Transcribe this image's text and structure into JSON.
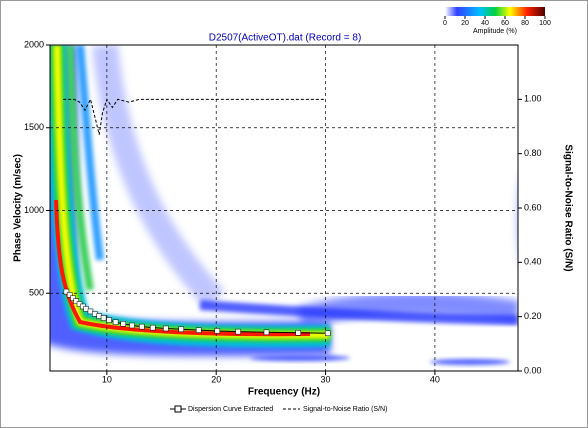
{
  "chart_data": {
    "type": "dispersion",
    "title": "D2507(ActiveOT).dat (Record = 8)",
    "x_label": "Frequency (Hz)",
    "y_label": "Phase Velocity (m/sec)",
    "y2_label": "Signal-to-Noise Ratio (S/N)",
    "xlim": [
      4.8,
      47.6
    ],
    "xticks": [
      10,
      20,
      30,
      40
    ],
    "ylim": [
      30,
      2000
    ],
    "yticks": [
      500,
      1000,
      1500,
      2000
    ],
    "y2lim": [
      0,
      1.2
    ],
    "y2ticks": [
      {
        "value": 0,
        "label": "0.00"
      },
      {
        "value": 0.2,
        "label": "0.20"
      },
      {
        "value": 0.4,
        "label": "0.40"
      },
      {
        "value": 0.6,
        "label": "0.60"
      },
      {
        "value": 0.8,
        "label": "0.80"
      },
      {
        "value": 1,
        "label": "1.00"
      }
    ],
    "grid": true,
    "colorbar": {
      "ticks": [
        0,
        20,
        40,
        60,
        80,
        100
      ],
      "label": "Amplitude (%)"
    },
    "series": [
      {
        "name": "Dispersion Curve Extracted",
        "color": "#ffffff",
        "x": [
          6.3,
          6.6,
          6.9,
          7.2,
          7.5,
          7.8,
          8.1,
          8.5,
          8.9,
          9.3,
          9.7,
          10.2,
          10.8,
          11.5,
          12.3,
          13.2,
          14.2,
          15.4,
          16.8,
          18.4,
          20.1,
          22.0,
          24.6,
          27.5,
          30.2
        ],
        "values": [
          510,
          490,
          470,
          452,
          435,
          420,
          405,
          390,
          375,
          362,
          350,
          338,
          325,
          315,
          305,
          298,
          292,
          287,
          282,
          277,
          272,
          268,
          264,
          261,
          258
        ]
      },
      {
        "name": "Signal-to-Noise Ratio (S/N)",
        "color": "#000000",
        "axis": "y2",
        "x": [
          6,
          7,
          7.5,
          8,
          8.5,
          9,
          9.3,
          9.6,
          10,
          10.5,
          11,
          12,
          13,
          30
        ],
        "values": [
          1.0,
          1.0,
          0.99,
          0.96,
          1.0,
          0.92,
          0.87,
          0.95,
          1.0,
          0.97,
          1.0,
          0.99,
          1.0,
          1.0
        ]
      }
    ]
  }
}
